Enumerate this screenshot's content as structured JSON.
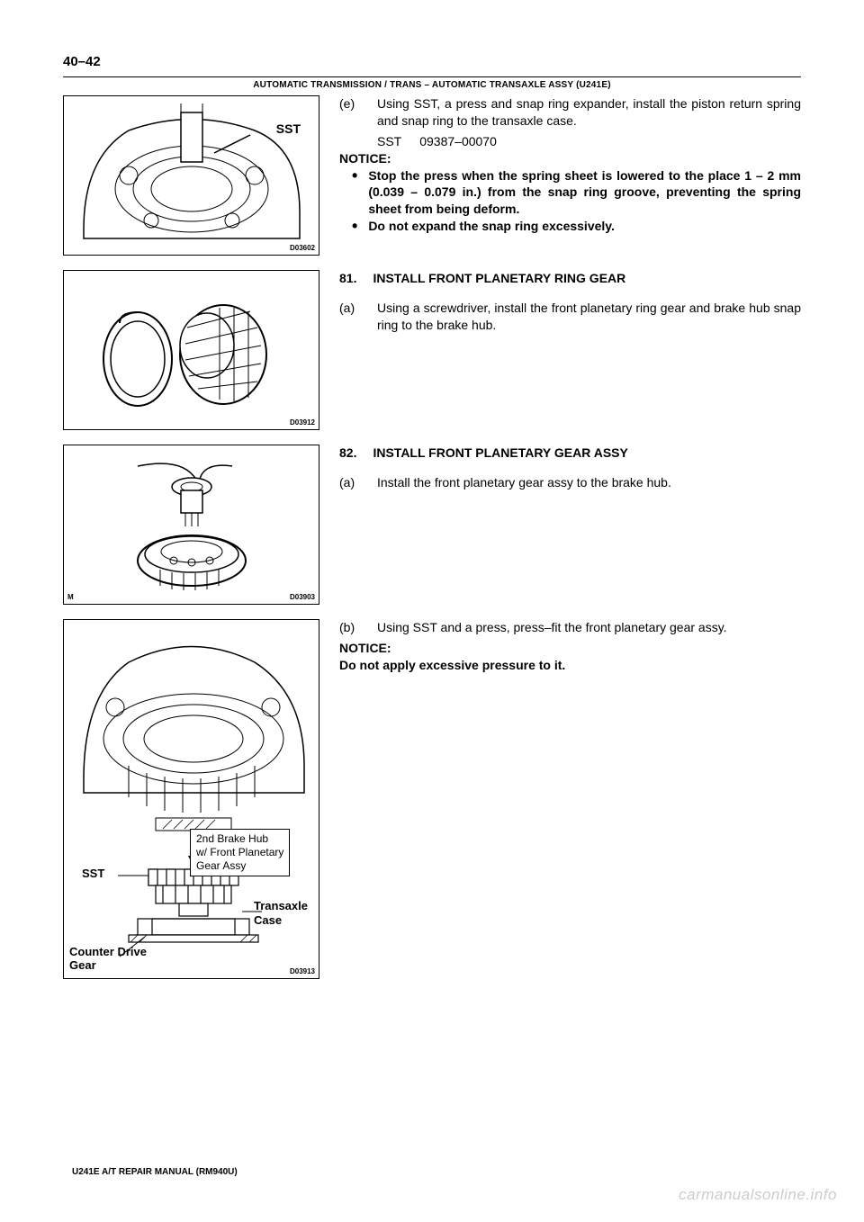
{
  "page_number": "40–42",
  "header": "AUTOMATIC TRANSMISSION / TRANS    –    AUTOMATIC TRANSAXLE ASSY (U241E)",
  "footer": "U241E A/T REPAIR MANUAL   (RM940U)",
  "watermark": "carmanualsonline.info",
  "block1": {
    "fig_id": "D03602",
    "sst_label": "SST",
    "step_letter": "(e)",
    "step_body": "Using SST, a press and snap ring expander, install the piston return spring and snap ring to the transaxle case.",
    "sst_label2": "SST",
    "sst_number": "09387–00070",
    "notice": "NOTICE:",
    "bullets": [
      "Stop the press when the spring sheet is lowered to the place 1 – 2 mm (0.039 – 0.079 in.) from the snap ring groove, preventing the spring sheet from being deform.",
      "Do not expand the snap ring excessively."
    ]
  },
  "block2": {
    "fig_id": "D03912",
    "section_num": "81.",
    "section_title": "INSTALL FRONT PLANETARY RING GEAR",
    "step_letter": "(a)",
    "step_body": "Using a screwdriver, install the front planetary ring gear and brake hub snap ring to the brake hub."
  },
  "block3": {
    "fig_id_left": "M",
    "fig_id": "D03903",
    "section_num": "82.",
    "section_title": "INSTALL FRONT PLANETARY GEAR ASSY",
    "step_letter": "(a)",
    "step_body": "Install the front planetary gear assy to the brake hub."
  },
  "block4": {
    "fig_id": "D03913",
    "step_letter": "(b)",
    "step_body": "Using SST and a press, press–fit the front planetary gear assy.",
    "notice": "NOTICE:",
    "notice_body": "Do not apply excessive pressure to it.",
    "callout_box": "2nd Brake Hub\nw/ Front Planetary\nGear Assy",
    "sst_label": "SST",
    "callout_transaxle": "Transaxle\nCase",
    "callout_counter": "Counter Drive\nGear"
  },
  "style": {
    "bg": "#ffffff",
    "fg": "#000000",
    "watermark_color": "#cccccc",
    "body_fontsize": 14,
    "header_fontsize": 10,
    "pagenum_fontsize": 15
  }
}
